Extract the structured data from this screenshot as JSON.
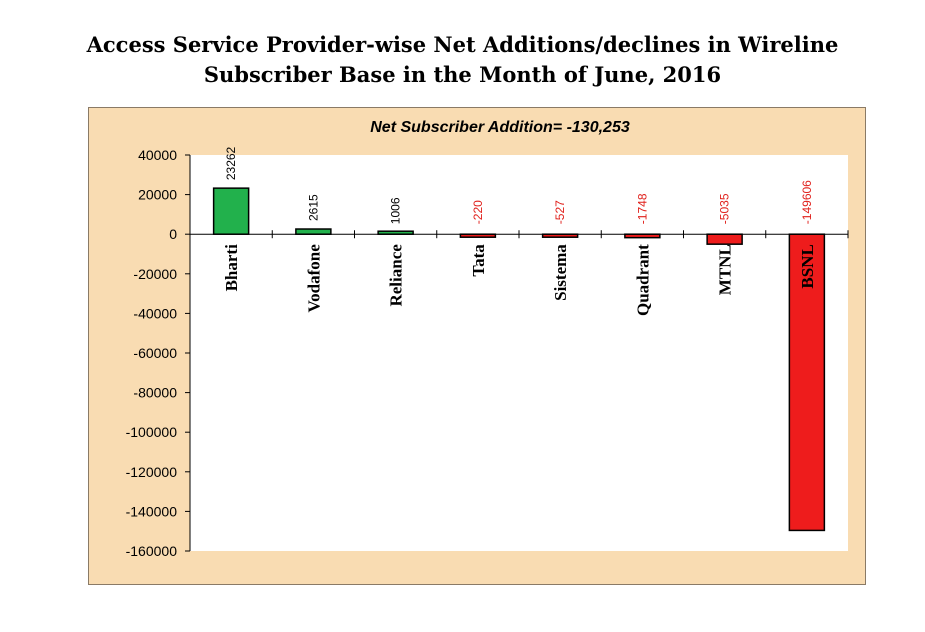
{
  "title_line1": "Access Service Provider-wise Net Additions/declines in Wireline",
  "title_line2": "Subscriber Base in the Month of June, 2016",
  "colors": {
    "positive": "#22b14c",
    "negative": "#ee1c1c",
    "plot_bg": "#ffffff",
    "panel_bg": "#f9dcb2",
    "positive_label": "#000000",
    "negative_label": "#e0201b"
  },
  "chart_data": {
    "type": "bar",
    "title": "Net Subscriber Addition= -130,253",
    "xlabel": "",
    "ylabel": "",
    "ylim": [
      -160000,
      40000
    ],
    "yticks": [
      40000,
      20000,
      0,
      -20000,
      -40000,
      -60000,
      -80000,
      -100000,
      -120000,
      -140000,
      -160000
    ],
    "categories": [
      "Bharti",
      "Vodafone",
      "Reliance",
      "Tata",
      "Sistema",
      "Quadrant",
      "MTNL",
      "BSNL"
    ],
    "values": [
      23262,
      2615,
      1006,
      -220,
      -527,
      -1748,
      -5035,
      -149606
    ],
    "data_labels": [
      "23262",
      "2615",
      "1006",
      "-220",
      "-527",
      "-1748",
      "-5035",
      "-149606"
    ],
    "grid": false,
    "legend": "none"
  }
}
